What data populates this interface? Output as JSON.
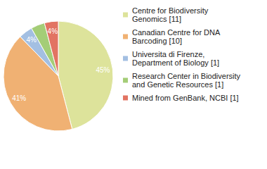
{
  "chart_data": {
    "type": "pie",
    "categories": [
      "Centre for Biodiversity Genomics [11]",
      "Canadian Centre for DNA Barcoding [10]",
      "Universita di Firenze, Department of Biology [1]",
      "Research Center in Biodiversity and Genetic Resources [1]",
      "Mined from GenBank, NCBI [1]"
    ],
    "values": [
      45,
      41,
      4,
      4,
      4
    ],
    "value_labels": [
      "45%",
      "41%",
      "4%",
      "4%",
      "4%"
    ],
    "colors": [
      "#dde39b",
      "#f0b173",
      "#a3bfe2",
      "#a4cd77",
      "#e27463"
    ],
    "data_labels": true,
    "legend": "right"
  }
}
